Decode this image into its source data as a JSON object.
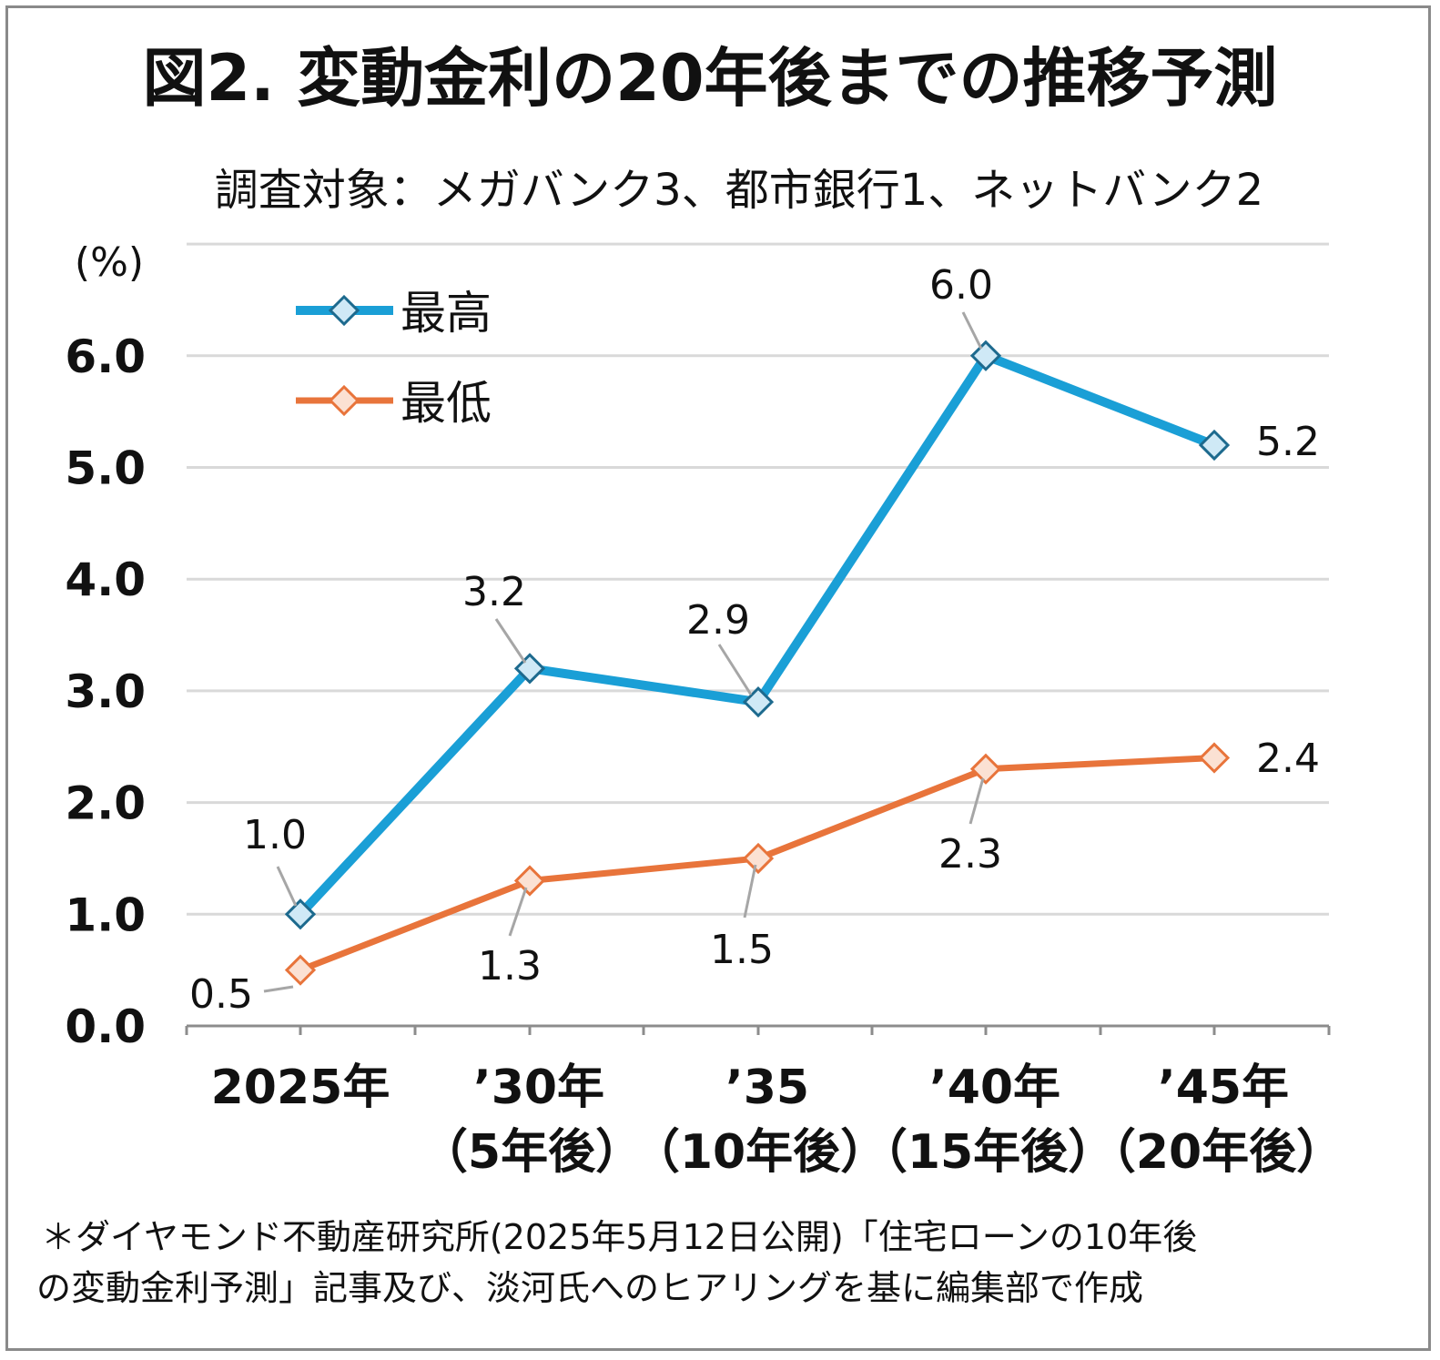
{
  "chart_data": {
    "type": "line",
    "title": "図2. 変動金利の20年後までの推移予測",
    "subtitle": "調査対象：メガバンク3、都市銀行1、ネットバンク2",
    "ylabel": "(%)",
    "ylim": [
      0,
      7
    ],
    "yticks": [
      "0.0",
      "1.0",
      "2.0",
      "3.0",
      "4.0",
      "5.0",
      "6.0"
    ],
    "grid": true,
    "legend_position": "top-left",
    "categories": [
      [
        "2025年",
        ""
      ],
      [
        "’30年",
        "（5年後）"
      ],
      [
        "’35",
        "（10年後）"
      ],
      [
        "’40年",
        "（15年後）"
      ],
      [
        "’45年",
        "（20年後）"
      ]
    ],
    "series": [
      {
        "name": "最高",
        "color": "#1a9fd6",
        "marker_fill": "#cfe9f6",
        "marker_stroke": "#1d6a8e",
        "values": [
          1.0,
          3.2,
          2.9,
          6.0,
          5.2
        ],
        "labels": [
          "1.0",
          "3.2",
          "2.9",
          "6.0",
          "5.2"
        ]
      },
      {
        "name": "最低",
        "color": "#e8743b",
        "marker_fill": "#fbe1d3",
        "marker_stroke": "#e8743b",
        "values": [
          0.5,
          1.3,
          1.5,
          2.3,
          2.4
        ],
        "labels": [
          "0.5",
          "1.3",
          "1.5",
          "2.3",
          "2.4"
        ]
      }
    ],
    "note": [
      "＊ダイヤモンド不動産研究所(2025年5月12日公開)「住宅ローンの10年後",
      "の変動金利予測」記事及び、淡河氏へのヒアリングを基に編集部で作成"
    ]
  }
}
